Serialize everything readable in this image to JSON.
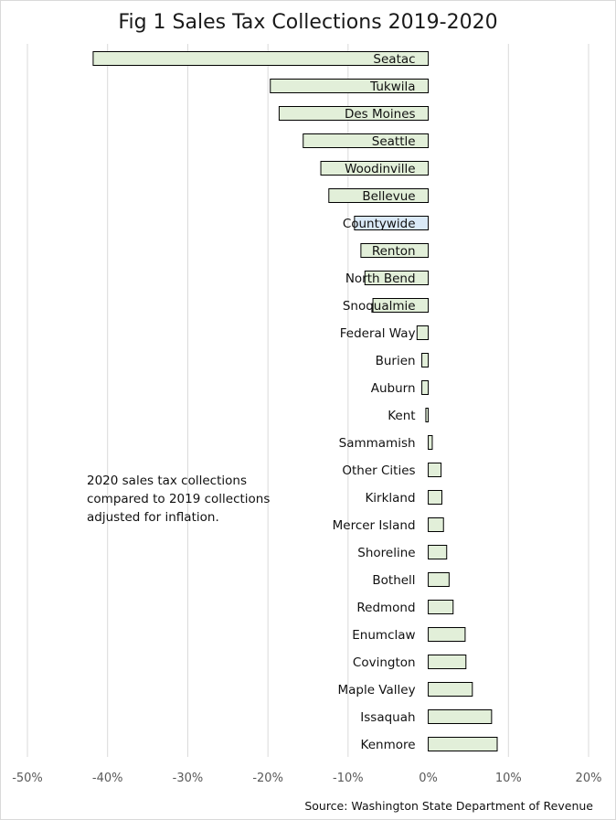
{
  "chart_data": {
    "type": "bar",
    "orientation": "horizontal",
    "title": "Fig 1 Sales Tax Collections 2019-2020",
    "categories": [
      "Seatac",
      "Tukwila",
      "Des Moines",
      "Seattle",
      "Woodinville",
      "Bellevue",
      "Countywide",
      "Renton",
      "North Bend",
      "Snoqualmie",
      "Federal Way",
      "Burien",
      "Auburn",
      "Kent",
      "Sammamish",
      "Other Cities",
      "Kirkland",
      "Mercer Island",
      "Shoreline",
      "Bothell",
      "Redmond",
      "Enumclaw",
      "Covington",
      "Maple Valley",
      "Issaquah",
      "Kenmore"
    ],
    "values": [
      -41.8,
      -19.7,
      -18.6,
      -15.6,
      -13.4,
      -12.4,
      -9.2,
      -8.4,
      -7.9,
      -6.9,
      -1.4,
      -0.8,
      -0.8,
      -0.3,
      0.5,
      1.6,
      1.7,
      1.9,
      2.3,
      2.6,
      3.1,
      4.6,
      4.7,
      5.5,
      7.9,
      8.6
    ],
    "highlight_category": "Countywide",
    "xlim": [
      -50,
      20
    ],
    "xticks": [
      -50,
      -40,
      -30,
      -20,
      -10,
      0,
      10,
      20
    ],
    "xtick_labels": [
      "-50%",
      "-40%",
      "-30%",
      "-20%",
      "-10%",
      "0%",
      "10%",
      "20%"
    ],
    "grid": "vertical",
    "colors": {
      "bar_fill": "#e2efd9",
      "highlight_fill": "#dae9f7",
      "bar_edge": "#000000",
      "gridline": "#d9d9d9",
      "tick_text": "#595959"
    }
  },
  "annotation": "2020 sales tax collections compared to 2019 collections adjusted for inflation.",
  "source": "Source: Washington State Department of Revenue"
}
